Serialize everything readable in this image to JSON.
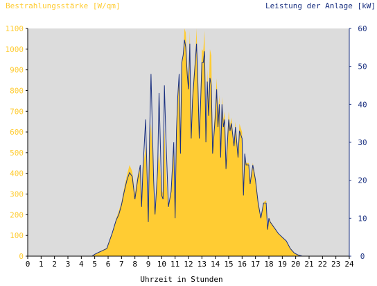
{
  "chart_data": {
    "type": "area",
    "left_axis_title": "Bestrahlungsstärke [W/qm]",
    "right_axis_title": "Leistung der Anlage [kW]",
    "xlabel": "Uhrzeit in Stunden",
    "xlim": [
      0,
      24
    ],
    "ylim_left": [
      0,
      1100
    ],
    "ylim_right": [
      0,
      60
    ],
    "x_ticks": [
      "0",
      "1",
      "2",
      "3",
      "4",
      "5",
      "6",
      "7",
      "8",
      "9",
      "10",
      "11",
      "12",
      "13",
      "14",
      "15",
      "16",
      "17",
      "18",
      "19",
      "20",
      "21",
      "22",
      "23",
      "24"
    ],
    "y_left_ticks": [
      "0",
      "100",
      "200",
      "300",
      "400",
      "500",
      "600",
      "700",
      "800",
      "900",
      "1000",
      "1100"
    ],
    "y_right_ticks": [
      "0",
      "10",
      "20",
      "30",
      "40",
      "50",
      "60"
    ],
    "grid": false,
    "colors": {
      "irradiance_fill": "#FFCC33",
      "irradiance_label": "#FFCC33",
      "power_line": "#1A3080",
      "power_label": "#1A3080",
      "plot_background": "#DCDCDC"
    },
    "series": [
      {
        "axis": "left",
        "x": [
          0,
          4.8,
          5.0,
          5.3,
          5.6,
          5.9,
          6.0,
          6.3,
          6.6,
          6.8,
          7.0,
          7.2,
          7.4,
          7.6,
          7.8,
          8.0,
          8.2,
          8.4,
          8.5,
          8.6,
          8.8,
          9.0,
          9.1,
          9.2,
          9.4,
          9.5,
          9.7,
          9.8,
          10.0,
          10.1,
          10.2,
          10.3,
          10.5,
          10.7,
          10.9,
          11.0,
          11.1,
          11.2,
          11.3,
          11.4,
          11.5,
          11.6,
          11.7,
          11.8,
          11.9,
          12.0,
          12.1,
          12.2,
          12.3,
          12.4,
          12.5,
          12.6,
          12.7,
          12.8,
          12.9,
          13.0,
          13.1,
          13.2,
          13.3,
          13.4,
          13.5,
          13.6,
          13.7,
          13.8,
          14.0,
          14.1,
          14.2,
          14.3,
          14.4,
          14.5,
          14.6,
          14.7,
          14.8,
          15.0,
          15.1,
          15.2,
          15.4,
          15.5,
          15.7,
          15.8,
          16.0,
          16.1,
          16.2,
          16.3,
          16.5,
          16.6,
          16.8,
          17.0,
          17.2,
          17.4,
          17.6,
          17.8,
          17.9,
          18.0,
          18.1,
          18.3,
          18.5,
          18.7,
          19.0,
          19.3,
          19.6,
          19.9,
          20.2,
          20.5,
          24
        ],
        "values": [
          0,
          0,
          10,
          20,
          30,
          40,
          60,
          110,
          180,
          220,
          260,
          330,
          390,
          440,
          410,
          300,
          390,
          430,
          250,
          420,
          530,
          180,
          560,
          640,
          370,
          220,
          420,
          500,
          320,
          300,
          620,
          420,
          230,
          330,
          550,
          200,
          620,
          780,
          880,
          500,
          950,
          960,
          1100,
          1080,
          910,
          860,
          1090,
          590,
          800,
          880,
          960,
          1100,
          870,
          600,
          780,
          1000,
          990,
          1090,
          600,
          900,
          740,
          1000,
          970,
          540,
          720,
          860,
          690,
          780,
          500,
          770,
          660,
          700,
          450,
          700,
          630,
          670,
          540,
          650,
          500,
          640,
          600,
          300,
          500,
          450,
          450,
          360,
          450,
          380,
          270,
          190,
          260,
          270,
          130,
          190,
          170,
          150,
          130,
          110,
          90,
          70,
          40,
          15,
          5,
          0,
          0
        ]
      },
      {
        "axis": "right",
        "x": [
          0,
          4.8,
          5.0,
          5.3,
          5.6,
          5.9,
          6.0,
          6.3,
          6.6,
          6.8,
          7.0,
          7.2,
          7.4,
          7.6,
          7.8,
          8.0,
          8.2,
          8.4,
          8.5,
          8.6,
          8.8,
          9.0,
          9.1,
          9.2,
          9.4,
          9.5,
          9.7,
          9.8,
          10.0,
          10.1,
          10.2,
          10.3,
          10.5,
          10.7,
          10.9,
          11.0,
          11.1,
          11.2,
          11.3,
          11.4,
          11.5,
          11.6,
          11.7,
          11.8,
          11.9,
          12.0,
          12.1,
          12.2,
          12.3,
          12.4,
          12.5,
          12.6,
          12.7,
          12.8,
          12.9,
          13.0,
          13.1,
          13.2,
          13.3,
          13.4,
          13.5,
          13.6,
          13.7,
          13.8,
          14.0,
          14.1,
          14.2,
          14.3,
          14.4,
          14.5,
          14.6,
          14.7,
          14.8,
          15.0,
          15.1,
          15.2,
          15.4,
          15.5,
          15.7,
          15.8,
          16.0,
          16.1,
          16.2,
          16.3,
          16.5,
          16.6,
          16.8,
          17.0,
          17.2,
          17.4,
          17.6,
          17.8,
          17.9,
          18.0,
          18.1,
          18.3,
          18.5,
          18.7,
          19.0,
          19.3,
          19.6,
          19.9,
          20.2,
          20.5,
          24
        ],
        "values": [
          0,
          0,
          0.5,
          1,
          1.5,
          2,
          3,
          6,
          9.5,
          11,
          13.5,
          17,
          20,
          22,
          21,
          15,
          20,
          24,
          13,
          23,
          36,
          9,
          32,
          48,
          20,
          11,
          23,
          43,
          16,
          15,
          45,
          33,
          13,
          17,
          30,
          10,
          33,
          42,
          48,
          27,
          51,
          53,
          57,
          55,
          48,
          44,
          56,
          31,
          41,
          46,
          51,
          56,
          46,
          31,
          40,
          51,
          51,
          54,
          30,
          46,
          37,
          47,
          45,
          27,
          37,
          44,
          34,
          40,
          26,
          40,
          34,
          36,
          23,
          36,
          33,
          35,
          29,
          34,
          26,
          33,
          31,
          16,
          27,
          24,
          24,
          19,
          24,
          20,
          14,
          10,
          14,
          14,
          7,
          10,
          9,
          8,
          7,
          6,
          5,
          4,
          2,
          0.8,
          0.3,
          0,
          0
        ]
      }
    ]
  }
}
